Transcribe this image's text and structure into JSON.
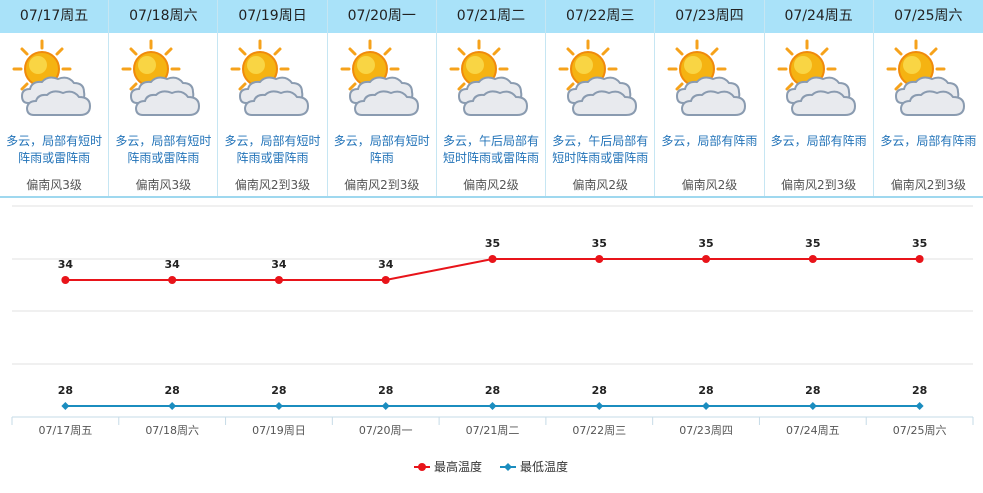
{
  "days": [
    {
      "date": "07/17周五",
      "desc": "多云，局部有短时阵雨或雷阵雨",
      "wind": "偏南风3级"
    },
    {
      "date": "07/18周六",
      "desc": "多云，局部有短时阵雨或雷阵雨",
      "wind": "偏南风3级"
    },
    {
      "date": "07/19周日",
      "desc": "多云，局部有短时阵雨或雷阵雨",
      "wind": "偏南风2到3级"
    },
    {
      "date": "07/20周一",
      "desc": "多云，局部有短时阵雨",
      "wind": "偏南风2到3级"
    },
    {
      "date": "07/21周二",
      "desc": "多云，午后局部有短时阵雨或雷阵雨",
      "wind": "偏南风2级"
    },
    {
      "date": "07/22周三",
      "desc": "多云，午后局部有短时阵雨或雷阵雨",
      "wind": "偏南风2级"
    },
    {
      "date": "07/23周四",
      "desc": "多云，局部有阵雨",
      "wind": "偏南风2级"
    },
    {
      "date": "07/24周五",
      "desc": "多云，局部有阵雨",
      "wind": "偏南风2到3级"
    },
    {
      "date": "07/25周六",
      "desc": "多云，局部有阵雨",
      "wind": "偏南风2到3级"
    }
  ],
  "icon": "partly-cloudy-sun-icon",
  "colors": {
    "header_bg": "#a9e2f9",
    "desc_text": "#2273b8",
    "high_line": "#e8141a",
    "low_line": "#1b8dbf",
    "grid": "#e2e2e2",
    "axis": "#c6dbe7"
  },
  "chart_data": {
    "type": "line",
    "categories": [
      "07/17周五",
      "07/18周六",
      "07/19周日",
      "07/20周一",
      "07/21周二",
      "07/22周三",
      "07/23周四",
      "07/24周五",
      "07/25周六"
    ],
    "series": [
      {
        "name": "最高温度",
        "values": [
          34,
          34,
          34,
          34,
          35,
          35,
          35,
          35,
          35
        ]
      },
      {
        "name": "最低温度",
        "values": [
          28,
          28,
          28,
          28,
          28,
          28,
          28,
          28,
          28
        ]
      }
    ],
    "legend": "bottom-center",
    "grid": true
  }
}
